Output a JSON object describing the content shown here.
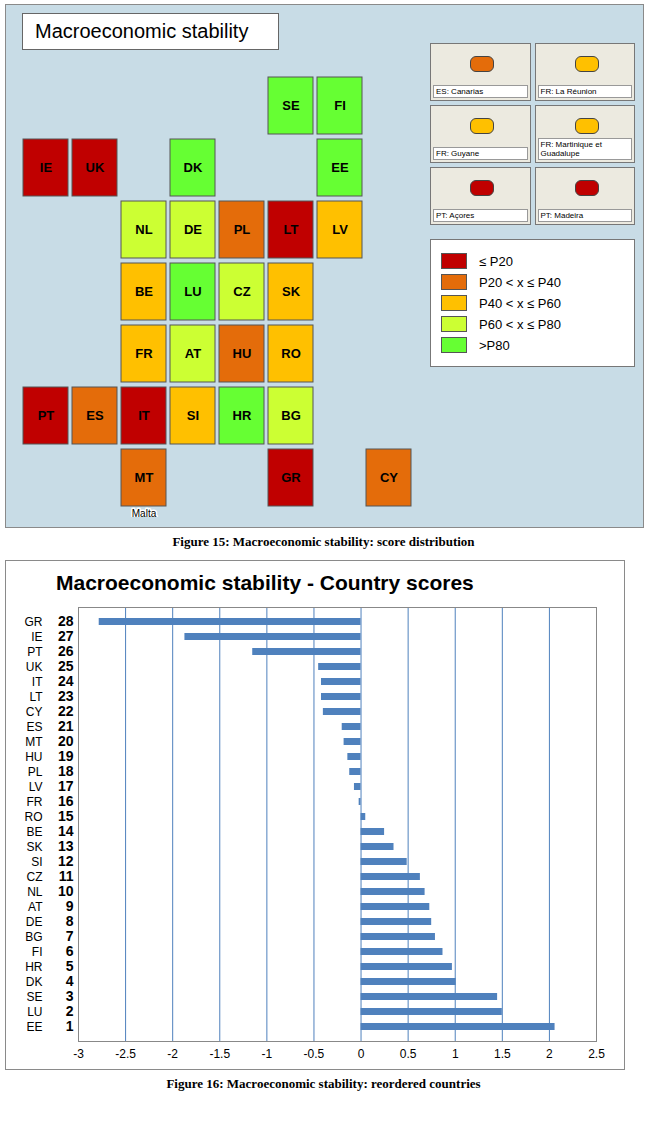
{
  "chart_data": [
    {
      "type": "map",
      "title": "Macroeconomic stability",
      "caption": "Figure 15: Macroeconomic stability: score distribution",
      "legend": "right",
      "classes": [
        {
          "label": "≤ P20",
          "color": "#c00000"
        },
        {
          "label": "P20 < x ≤ P40",
          "color": "#e46c0a"
        },
        {
          "label": "P40 < x ≤ P60",
          "color": "#ffc000"
        },
        {
          "label": "P60 < x ≤ P80",
          "color": "#ccff33"
        },
        {
          "label": ">P80",
          "color": "#66ff33"
        }
      ],
      "regions": [
        {
          "name": "GR",
          "class": "≤ P20"
        },
        {
          "name": "IE",
          "class": "≤ P20"
        },
        {
          "name": "PT",
          "class": "≤ P20"
        },
        {
          "name": "UK",
          "class": "≤ P20"
        },
        {
          "name": "IT",
          "class": "≤ P20"
        },
        {
          "name": "LT",
          "class": "≤ P20"
        },
        {
          "name": "CY",
          "class": "P20 < x ≤ P40"
        },
        {
          "name": "ES",
          "class": "P20 < x ≤ P40"
        },
        {
          "name": "MT",
          "class": "P20 < x ≤ P40"
        },
        {
          "name": "HU",
          "class": "P20 < x ≤ P40"
        },
        {
          "name": "PL",
          "class": "P20 < x ≤ P40"
        },
        {
          "name": "LV",
          "class": "P40 < x ≤ P60"
        },
        {
          "name": "FR",
          "class": "P40 < x ≤ P60"
        },
        {
          "name": "RO",
          "class": "P40 < x ≤ P60"
        },
        {
          "name": "BE",
          "class": "P40 < x ≤ P60"
        },
        {
          "name": "SK",
          "class": "P40 < x ≤ P60"
        },
        {
          "name": "SI",
          "class": "P40 < x ≤ P60"
        },
        {
          "name": "CZ",
          "class": "P60 < x ≤ P80"
        },
        {
          "name": "NL",
          "class": "P60 < x ≤ P80"
        },
        {
          "name": "AT",
          "class": "P60 < x ≤ P80"
        },
        {
          "name": "DE",
          "class": "P60 < x ≤ P80"
        },
        {
          "name": "BG",
          "class": "P60 < x ≤ P80"
        },
        {
          "name": "FI",
          "class": ">P80"
        },
        {
          "name": "HR",
          "class": ">P80"
        },
        {
          "name": "DK",
          "class": ">P80"
        },
        {
          "name": "SE",
          "class": ">P80"
        },
        {
          "name": "LU",
          "class": ">P80"
        },
        {
          "name": "EE",
          "class": ">P80"
        }
      ],
      "insets": [
        {
          "name": "ES: Canarias",
          "class": "P20 < x ≤ P40"
        },
        {
          "name": "FR: La Réunion",
          "class": "P40 < x ≤ P60"
        },
        {
          "name": "FR: Guyane",
          "class": "P40 < x ≤ P60"
        },
        {
          "name": "FR: Martinique et Guadalupe",
          "class": "P40 < x ≤ P60"
        },
        {
          "name": "PT: Açores",
          "class": "≤ P20"
        },
        {
          "name": "PT: Madeira",
          "class": "≤ P20"
        }
      ],
      "annotations": [
        {
          "text": "Malta",
          "region": "MT"
        }
      ]
    },
    {
      "type": "bar",
      "title": "Macroeconomic stability - Country scores",
      "caption": "Figure 16: Macroeconomic stability: reordered countries",
      "orientation": "horizontal",
      "categories": [
        "GR",
        "IE",
        "PT",
        "UK",
        "IT",
        "LT",
        "CY",
        "ES",
        "MT",
        "HU",
        "PL",
        "LV",
        "FR",
        "RO",
        "BE",
        "SK",
        "SI",
        "CZ",
        "NL",
        "AT",
        "DE",
        "BG",
        "FI",
        "HR",
        "DK",
        "SE",
        "LU",
        "EE"
      ],
      "ranks": [
        28,
        27,
        26,
        25,
        24,
        23,
        22,
        21,
        20,
        19,
        18,
        17,
        16,
        15,
        14,
        13,
        12,
        11,
        10,
        9,
        8,
        7,
        6,
        5,
        4,
        3,
        2,
        1
      ],
      "values": [
        -2.78,
        -1.87,
        -1.15,
        -0.45,
        -0.42,
        -0.42,
        -0.4,
        -0.2,
        -0.18,
        -0.14,
        -0.12,
        -0.07,
        -0.02,
        0.05,
        0.25,
        0.35,
        0.49,
        0.63,
        0.68,
        0.73,
        0.75,
        0.79,
        0.87,
        0.97,
        1.01,
        1.45,
        1.5,
        2.06
      ],
      "color": "#4f81bd",
      "xlim": [
        -3,
        2.5
      ],
      "xticks": [
        -3,
        -2.5,
        -2,
        -1.5,
        -1,
        -0.5,
        0,
        0.5,
        1,
        1.5,
        2,
        2.5
      ],
      "grid": true
    }
  ]
}
